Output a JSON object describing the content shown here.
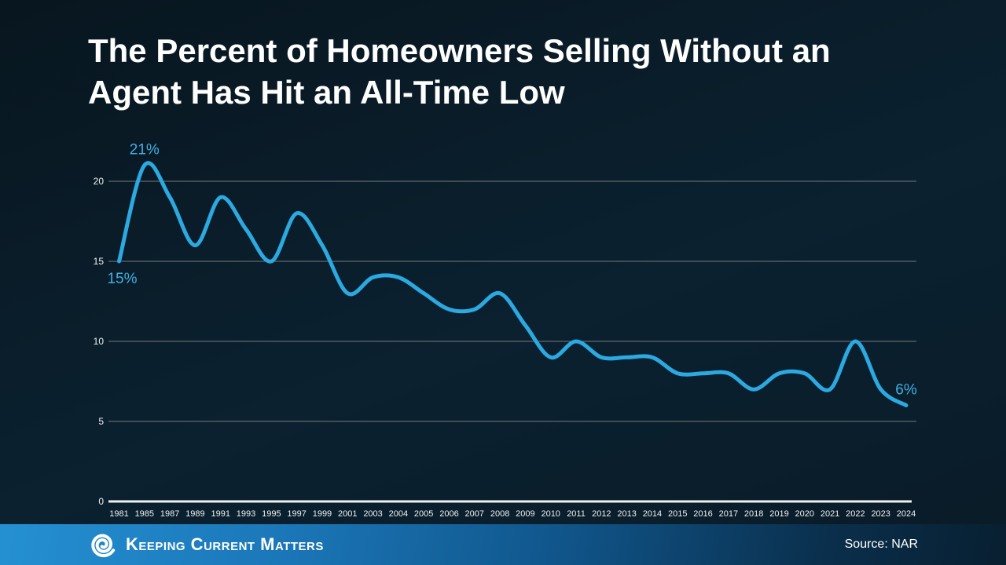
{
  "title": {
    "line1": "The Percent of Homeowners Selling Without an",
    "line2": "Agent Has Hit an All-Time Low"
  },
  "chart_data": {
    "type": "line",
    "title": "The Percent of Homeowners Selling Without an Agent Has Hit an All-Time Low",
    "xlabel": "",
    "ylabel": "",
    "ylim": [
      0,
      22
    ],
    "yticks": [
      0,
      5,
      10,
      15,
      20
    ],
    "grid": "horizontal",
    "legend": "none",
    "line_color": "#2BA9E1",
    "gridline_color": "#75797b",
    "axis_color": "#eef1f2",
    "tick_label_color": "#eef2f4",
    "data_label_color": "#41AFE3",
    "categories": [
      "1981",
      "1985",
      "1987",
      "1989",
      "1991",
      "1993",
      "1995",
      "1997",
      "1999",
      "2001",
      "2003",
      "2004",
      "2005",
      "2006",
      "2007",
      "2008",
      "2009",
      "2010",
      "2011",
      "2012",
      "2013",
      "2014",
      "2015",
      "2016",
      "2017",
      "2018",
      "2019",
      "2020",
      "2021",
      "2022",
      "2023",
      "2024"
    ],
    "values": [
      15,
      21,
      19,
      16,
      19,
      17,
      15,
      18,
      16,
      13,
      14,
      14,
      13,
      12,
      12,
      13,
      11,
      9,
      10,
      9,
      9,
      9,
      8,
      8,
      8,
      7,
      8,
      8,
      7,
      10,
      7,
      6
    ],
    "annotations": [
      {
        "text": "15%",
        "year": "1981",
        "placement": "below"
      },
      {
        "text": "21%",
        "year": "1985",
        "placement": "above"
      },
      {
        "text": "6%",
        "year": "2024",
        "placement": "above"
      }
    ]
  },
  "footer": {
    "brand": "Keeping Current Matters",
    "source": "Source: NAR"
  }
}
